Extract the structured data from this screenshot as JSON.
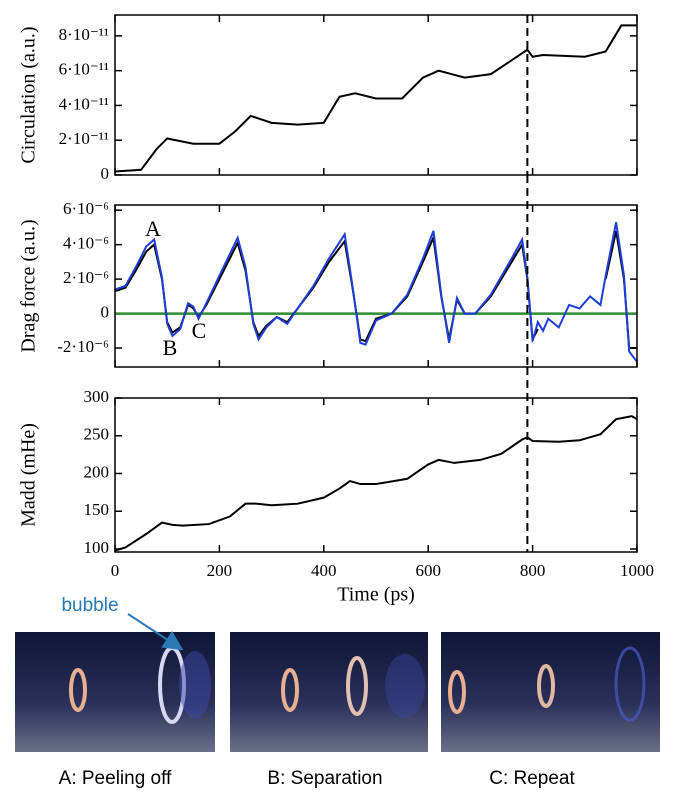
{
  "chart_data": [
    {
      "type": "line",
      "ylabel": "Circulation (a.u.)",
      "x": [
        0,
        50,
        80,
        100,
        150,
        200,
        230,
        260,
        300,
        350,
        400,
        430,
        460,
        500,
        550,
        590,
        620,
        670,
        720,
        760,
        790,
        800,
        820,
        900,
        940,
        970,
        1000
      ],
      "series": [
        {
          "color": "#000000",
          "values": [
            2e-12,
            3e-12,
            1.5e-11,
            2.1e-11,
            1.8e-11,
            1.8e-11,
            2.5e-11,
            3.4e-11,
            3e-11,
            2.9e-11,
            3e-11,
            4.5e-11,
            4.7e-11,
            4.4e-11,
            4.4e-11,
            5.6e-11,
            6e-11,
            5.6e-11,
            5.8e-11,
            6.6e-11,
            7.2e-11,
            6.8e-11,
            6.9e-11,
            6.8e-11,
            7.1e-11,
            8.6e-11,
            8.6e-11
          ]
        }
      ],
      "xlim": [
        0,
        1000
      ],
      "xticks": [
        0,
        200,
        400,
        600,
        800,
        1000
      ],
      "ylim": [
        0,
        9.2e-11
      ],
      "yticks": [
        0,
        {
          "value": 2e-11,
          "label": "2·10⁻¹¹"
        },
        {
          "value": 4e-11,
          "label": "4·10⁻¹¹"
        },
        {
          "value": 6e-11,
          "label": "6·10⁻¹¹"
        },
        {
          "value": 8e-11,
          "label": "8·10⁻¹¹"
        }
      ],
      "vline": 790
    },
    {
      "type": "line",
      "ylabel": "Drag force (a.u.)",
      "x": [
        0,
        20,
        40,
        60,
        75,
        90,
        100,
        110,
        125,
        140,
        150,
        160,
        175,
        200,
        235,
        250,
        265,
        275,
        290,
        310,
        330,
        350,
        380,
        410,
        440,
        455,
        470,
        480,
        500,
        530,
        560,
        590,
        610,
        625,
        640,
        655,
        670,
        690,
        720,
        760,
        780,
        790,
        800,
        810,
        820,
        830,
        850,
        870,
        890,
        910,
        930,
        940,
        960,
        975,
        985,
        1000
      ],
      "series": [
        {
          "color": "#000000",
          "values": [
            1.3e-06,
            1.5e-06,
            2.5e-06,
            3.6e-06,
            4e-06,
            2e-06,
            -5e-07,
            -1.1e-06,
            -8e-07,
            5e-07,
            3e-07,
            -2e-07,
            5e-07,
            2e-06,
            4.1e-06,
            2.5e-06,
            -5e-07,
            -1.3e-06,
            -7e-07,
            -2e-07,
            -5e-07,
            3e-07,
            1.5e-06,
            3e-06,
            4.2e-06,
            1.5e-06,
            -1.5e-06,
            -1.6e-06,
            -3e-07,
            0,
            1e-06,
            3e-06,
            4.4e-06,
            1e-06,
            -1.5e-06,
            8e-07,
            0,
            0,
            1e-06,
            3e-06,
            4e-06,
            2e-06,
            -1.5e-06,
            -9e-07,
            null,
            null,
            null,
            null,
            null,
            null,
            null,
            2e-06,
            4.8e-06,
            2e-06,
            -2e-06,
            -2e-06
          ]
        },
        {
          "color": "#1f3fd8",
          "values": [
            1.4e-06,
            1.6e-06,
            2.7e-06,
            3.9e-06,
            4.3e-06,
            2.1e-06,
            -6e-07,
            -1.3e-06,
            -9e-07,
            6e-07,
            4e-07,
            -3e-07,
            6e-07,
            2.2e-06,
            4.4e-06,
            2.7e-06,
            -6e-07,
            -1.5e-06,
            -8e-07,
            -2e-07,
            -6e-07,
            3e-07,
            1.6e-06,
            3.2e-06,
            4.6e-06,
            1.6e-06,
            -1.7e-06,
            -1.8e-06,
            -4e-07,
            0,
            1.1e-06,
            3.2e-06,
            4.8e-06,
            1.1e-06,
            -1.7e-06,
            9e-07,
            0,
            0,
            1.1e-06,
            3.2e-06,
            4.3e-06,
            2.1e-06,
            -1.6e-06,
            -5e-07,
            -1e-06,
            -3e-07,
            -8e-07,
            5e-07,
            3e-07,
            1e-06,
            5e-07,
            2.2e-06,
            5.3e-06,
            2.2e-06,
            -2.2e-06,
            -2.8e-06
          ]
        }
      ],
      "xlim": [
        0,
        1000
      ],
      "xticks": [
        0,
        200,
        400,
        600,
        800,
        1000
      ],
      "ylim": [
        -3.1e-06,
        6.3e-06
      ],
      "yticks": [
        {
          "value": -2e-06,
          "label": "-2·10⁻⁶"
        },
        0,
        {
          "value": 2e-06,
          "label": "2·10⁻⁶"
        },
        {
          "value": 4e-06,
          "label": "4·10⁻⁶"
        },
        {
          "value": 6e-06,
          "label": "6·10⁻⁶"
        }
      ],
      "reference_line": 0,
      "reference_color": "#2e8b2e",
      "annotations": [
        {
          "text": "A"
        },
        {
          "text": "B"
        },
        {
          "text": "C"
        }
      ],
      "vline": 790
    },
    {
      "type": "line",
      "ylabel": "Madd (mHe)",
      "xlabel": "Time  (ps)",
      "x": [
        0,
        20,
        60,
        90,
        110,
        130,
        180,
        220,
        250,
        270,
        300,
        350,
        400,
        430,
        450,
        470,
        500,
        560,
        600,
        620,
        650,
        700,
        740,
        780,
        790,
        800,
        850,
        890,
        930,
        960,
        990,
        1000
      ],
      "series": [
        {
          "color": "#000000",
          "values": [
            98,
            102,
            120,
            135,
            132,
            131,
            133,
            143,
            160,
            160,
            158,
            160,
            168,
            180,
            190,
            186,
            186,
            193,
            212,
            218,
            214,
            218,
            226,
            245,
            248,
            243,
            242,
            244,
            252,
            272,
            276,
            272
          ]
        }
      ],
      "xlim": [
        0,
        1000
      ],
      "xticks": [
        0,
        200,
        400,
        600,
        800,
        1000
      ],
      "ylim": [
        96,
        300
      ],
      "yticks": [
        100,
        150,
        200,
        250,
        300
      ],
      "vline": 790
    }
  ],
  "images": {
    "bubble_label": "bubble",
    "captions": [
      "A: Peeling off",
      "B: Separation",
      "C: Repeat"
    ]
  }
}
